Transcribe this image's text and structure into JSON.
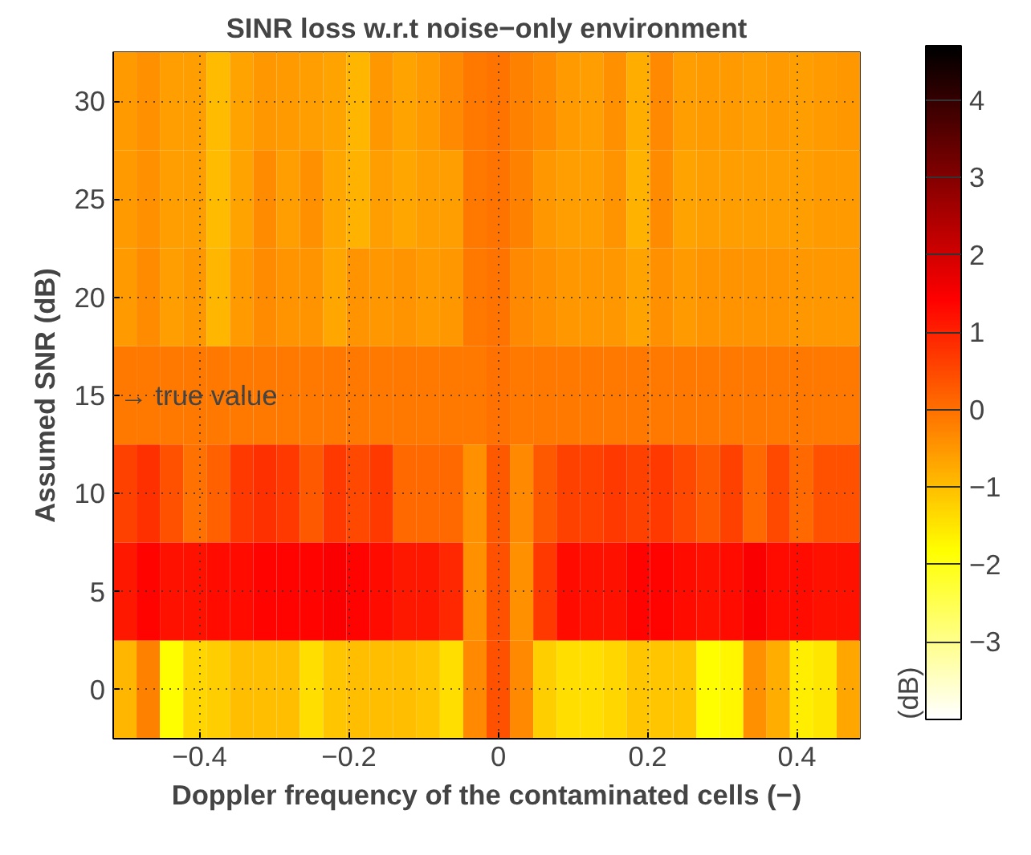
{
  "chart_data": {
    "type": "heatmap",
    "title": "SINR loss w.r.t noise−only environment",
    "xlabel": "Doppler frequency of the contaminated cells (−)",
    "ylabel": "Assumed SNR (dB)",
    "clabel": "(dB)",
    "x": [
      -0.5,
      -0.46875,
      -0.4375,
      -0.40625,
      -0.375,
      -0.34375,
      -0.3125,
      -0.28125,
      -0.25,
      -0.21875,
      -0.1875,
      -0.15625,
      -0.125,
      -0.09375,
      -0.0625,
      -0.03125,
      0,
      0.03125,
      0.0625,
      0.09375,
      0.125,
      0.15625,
      0.1875,
      0.21875,
      0.25,
      0.28125,
      0.3125,
      0.34375,
      0.375,
      0.40625,
      0.4375,
      0.46875
    ],
    "y": [
      30,
      25,
      20,
      15,
      10,
      5,
      0
    ],
    "cells": [
      [
        -0.55,
        -0.4,
        -0.6,
        -0.6,
        -0.95,
        -0.65,
        -0.5,
        -0.55,
        -0.6,
        -0.65,
        -0.9,
        -0.5,
        -0.65,
        -0.55,
        -0.3,
        -0.1,
        -0.05,
        -0.2,
        -0.35,
        -0.55,
        -0.6,
        -0.4,
        -0.8,
        -0.3,
        -0.6,
        -0.55,
        -0.55,
        -0.6,
        -0.55,
        -0.6,
        -0.55,
        -0.5
      ],
      [
        -0.55,
        -0.4,
        -0.6,
        -0.6,
        -0.95,
        -0.65,
        -0.35,
        -0.6,
        -0.4,
        -0.7,
        -0.85,
        -0.6,
        -0.7,
        -0.6,
        -0.6,
        -0.1,
        -0.05,
        -0.2,
        -0.5,
        -0.6,
        -0.6,
        -0.45,
        -0.85,
        -0.35,
        -0.65,
        -0.6,
        -0.6,
        -0.6,
        -0.6,
        -0.6,
        -0.55,
        -0.55
      ],
      [
        -0.55,
        -0.35,
        -0.6,
        -0.5,
        -0.9,
        -0.55,
        -0.35,
        -0.45,
        -0.45,
        -0.7,
        -0.45,
        -0.5,
        -0.45,
        -0.55,
        -0.5,
        -0.1,
        -0.05,
        -0.3,
        -0.4,
        -0.5,
        -0.5,
        -0.5,
        -0.65,
        -0.4,
        -0.55,
        -0.45,
        -0.45,
        -0.45,
        -0.45,
        -0.5,
        -0.5,
        -0.5
      ],
      [
        -0.1,
        -0.1,
        -0.1,
        -0.1,
        -0.1,
        -0.1,
        -0.1,
        -0.1,
        -0.1,
        -0.1,
        -0.1,
        -0.1,
        -0.1,
        -0.1,
        -0.1,
        -0.1,
        0,
        -0.1,
        -0.1,
        -0.1,
        -0.1,
        -0.1,
        -0.1,
        -0.1,
        -0.1,
        -0.1,
        -0.1,
        -0.1,
        -0.1,
        -0.1,
        -0.1,
        -0.1
      ],
      [
        0.6,
        0.8,
        0.4,
        0,
        0.2,
        0.7,
        0.8,
        0.7,
        0.3,
        0.7,
        0.5,
        0.7,
        0.1,
        0.1,
        0.1,
        -0.4,
        0.3,
        -0.3,
        0.3,
        0.6,
        0.6,
        0.7,
        0.6,
        0.7,
        0.5,
        0.3,
        0.6,
        0.1,
        0.5,
        0.1,
        0.4,
        0.4
      ],
      [
        1.1,
        1.4,
        1.2,
        1.2,
        1.3,
        1.3,
        1.4,
        1.4,
        1.4,
        1.5,
        1.4,
        1.3,
        1.1,
        1.1,
        0.9,
        -0.4,
        0.4,
        -0.4,
        0.7,
        1.3,
        1.2,
        1.2,
        1.4,
        1.4,
        1.3,
        1.2,
        1.3,
        1.5,
        1.3,
        1.3,
        1.2,
        1.2
      ],
      [
        -0.9,
        -0.2,
        -1.8,
        -1.3,
        -1.2,
        -1,
        -1,
        -1,
        -1.4,
        -1.1,
        -1,
        -1,
        -1,
        -1.1,
        -1.4,
        -0.3,
        0.4,
        -0.3,
        -1.2,
        -1.4,
        -1.4,
        -1.3,
        -1.1,
        -1.1,
        -1.1,
        -1.8,
        -1.7,
        -0.4,
        -0.8,
        -1.6,
        -1.5,
        -0.7
      ]
    ],
    "xlim": [
      -0.515625,
      0.484375
    ],
    "ylim": [
      -2.5,
      32.5
    ],
    "xticks": [
      {
        "value": -0.4,
        "label": "−0.4"
      },
      {
        "value": -0.2,
        "label": "−0.2"
      },
      0,
      0.2,
      0.4
    ],
    "yticks": [
      0,
      5,
      10,
      15,
      20,
      25,
      30
    ],
    "clim": [
      -4,
      4.7
    ],
    "cticks": [
      {
        "value": -3,
        "label": "−3"
      },
      {
        "value": -2,
        "label": "−2"
      },
      {
        "value": -1,
        "label": "−1"
      },
      0,
      1,
      2,
      3,
      4
    ],
    "grid": true,
    "annotations": [
      "→ true value"
    ]
  }
}
